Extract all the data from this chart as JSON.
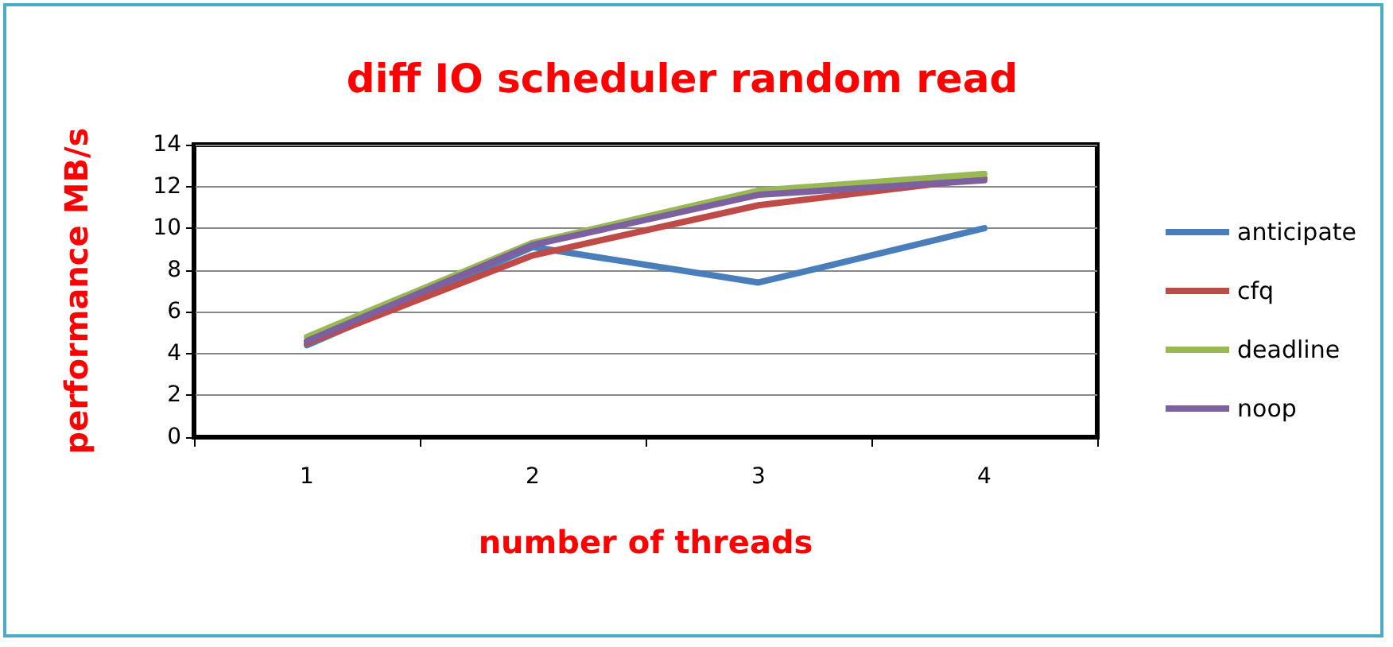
{
  "chart_data": {
    "type": "line",
    "title": "diff IO scheduler random read",
    "xlabel": "number of threads",
    "ylabel": "performance MB/s",
    "categories": [
      "1",
      "2",
      "3",
      "4"
    ],
    "series": [
      {
        "name": "anticipate",
        "color": "#4a7ebb",
        "values": [
          4.4,
          9.1,
          7.4,
          10.0
        ]
      },
      {
        "name": "cfq",
        "color": "#be4b48",
        "values": [
          4.5,
          8.7,
          11.1,
          12.4
        ]
      },
      {
        "name": "deadline",
        "color": "#98b954",
        "values": [
          4.8,
          9.3,
          11.8,
          12.6
        ]
      },
      {
        "name": "noop",
        "color": "#7d60a0",
        "values": [
          4.6,
          9.2,
          11.6,
          12.3
        ]
      }
    ],
    "ylim": [
      0,
      14
    ],
    "yticks": [
      0,
      2,
      4,
      6,
      8,
      10,
      12,
      14
    ],
    "grid": "y",
    "legend": "right",
    "marker": "none",
    "line_style": "solid"
  }
}
